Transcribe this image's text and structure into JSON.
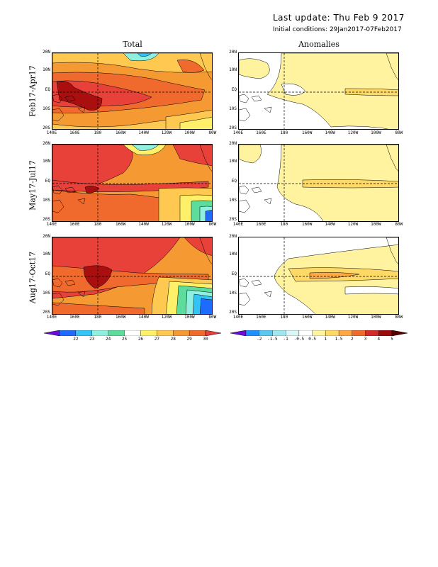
{
  "header": {
    "last_update": "Last update: Thu Feb 9 2017",
    "initial_conditions": "Initial conditions: 29Jan2017-07Feb2017"
  },
  "columns": [
    "Total",
    "Anomalies"
  ],
  "rows": [
    "Feb17-Apr17",
    "May17-Jul17",
    "Aug17-Oct17"
  ],
  "y_ticks": [
    "20N",
    "10N",
    "EQ",
    "10S",
    "20S"
  ],
  "x_ticks": [
    "140E",
    "160E",
    "180",
    "160W",
    "140W",
    "120W",
    "100W",
    "80W"
  ],
  "colorbar_total": {
    "labels": [
      "22",
      "23",
      "24",
      "25",
      "26",
      "27",
      "28",
      "29",
      "30"
    ],
    "colors": [
      "#6a0ddb",
      "#1e6bff",
      "#33c3f5",
      "#8ff0e0",
      "#5ddc9c",
      "#ffffff",
      "#fff06a",
      "#ffc850",
      "#f59a33",
      "#f06a2e",
      "#e8413a"
    ]
  },
  "colorbar_anom": {
    "labels": [
      "-2",
      "-1.5",
      "-1",
      "-0.5",
      "0.5",
      "1",
      "1.5",
      "2",
      "3",
      "4",
      "5"
    ],
    "colors": [
      "#6a0ddb",
      "#1e90ff",
      "#5cc8f0",
      "#a0e6f0",
      "#d8f6f6",
      "#ffffff",
      "#fff3a0",
      "#ffd966",
      "#ffa845",
      "#f06a2e",
      "#d32b2b",
      "#9a0c0c",
      "#5a0000"
    ]
  },
  "palette": {
    "t30": "#e8413a",
    "t29": "#f06a2e",
    "t28": "#f59a33",
    "t27": "#ffc850",
    "t26": "#fff06a",
    "t25": "#5ddc9c",
    "t24": "#8ff0e0",
    "t23": "#33c3f5",
    "t22": "#1e6bff",
    "tdark": "#aa0f0f",
    "a05": "#fff3a0",
    "a1": "#ffd966",
    "a15": "#ffa845"
  }
}
